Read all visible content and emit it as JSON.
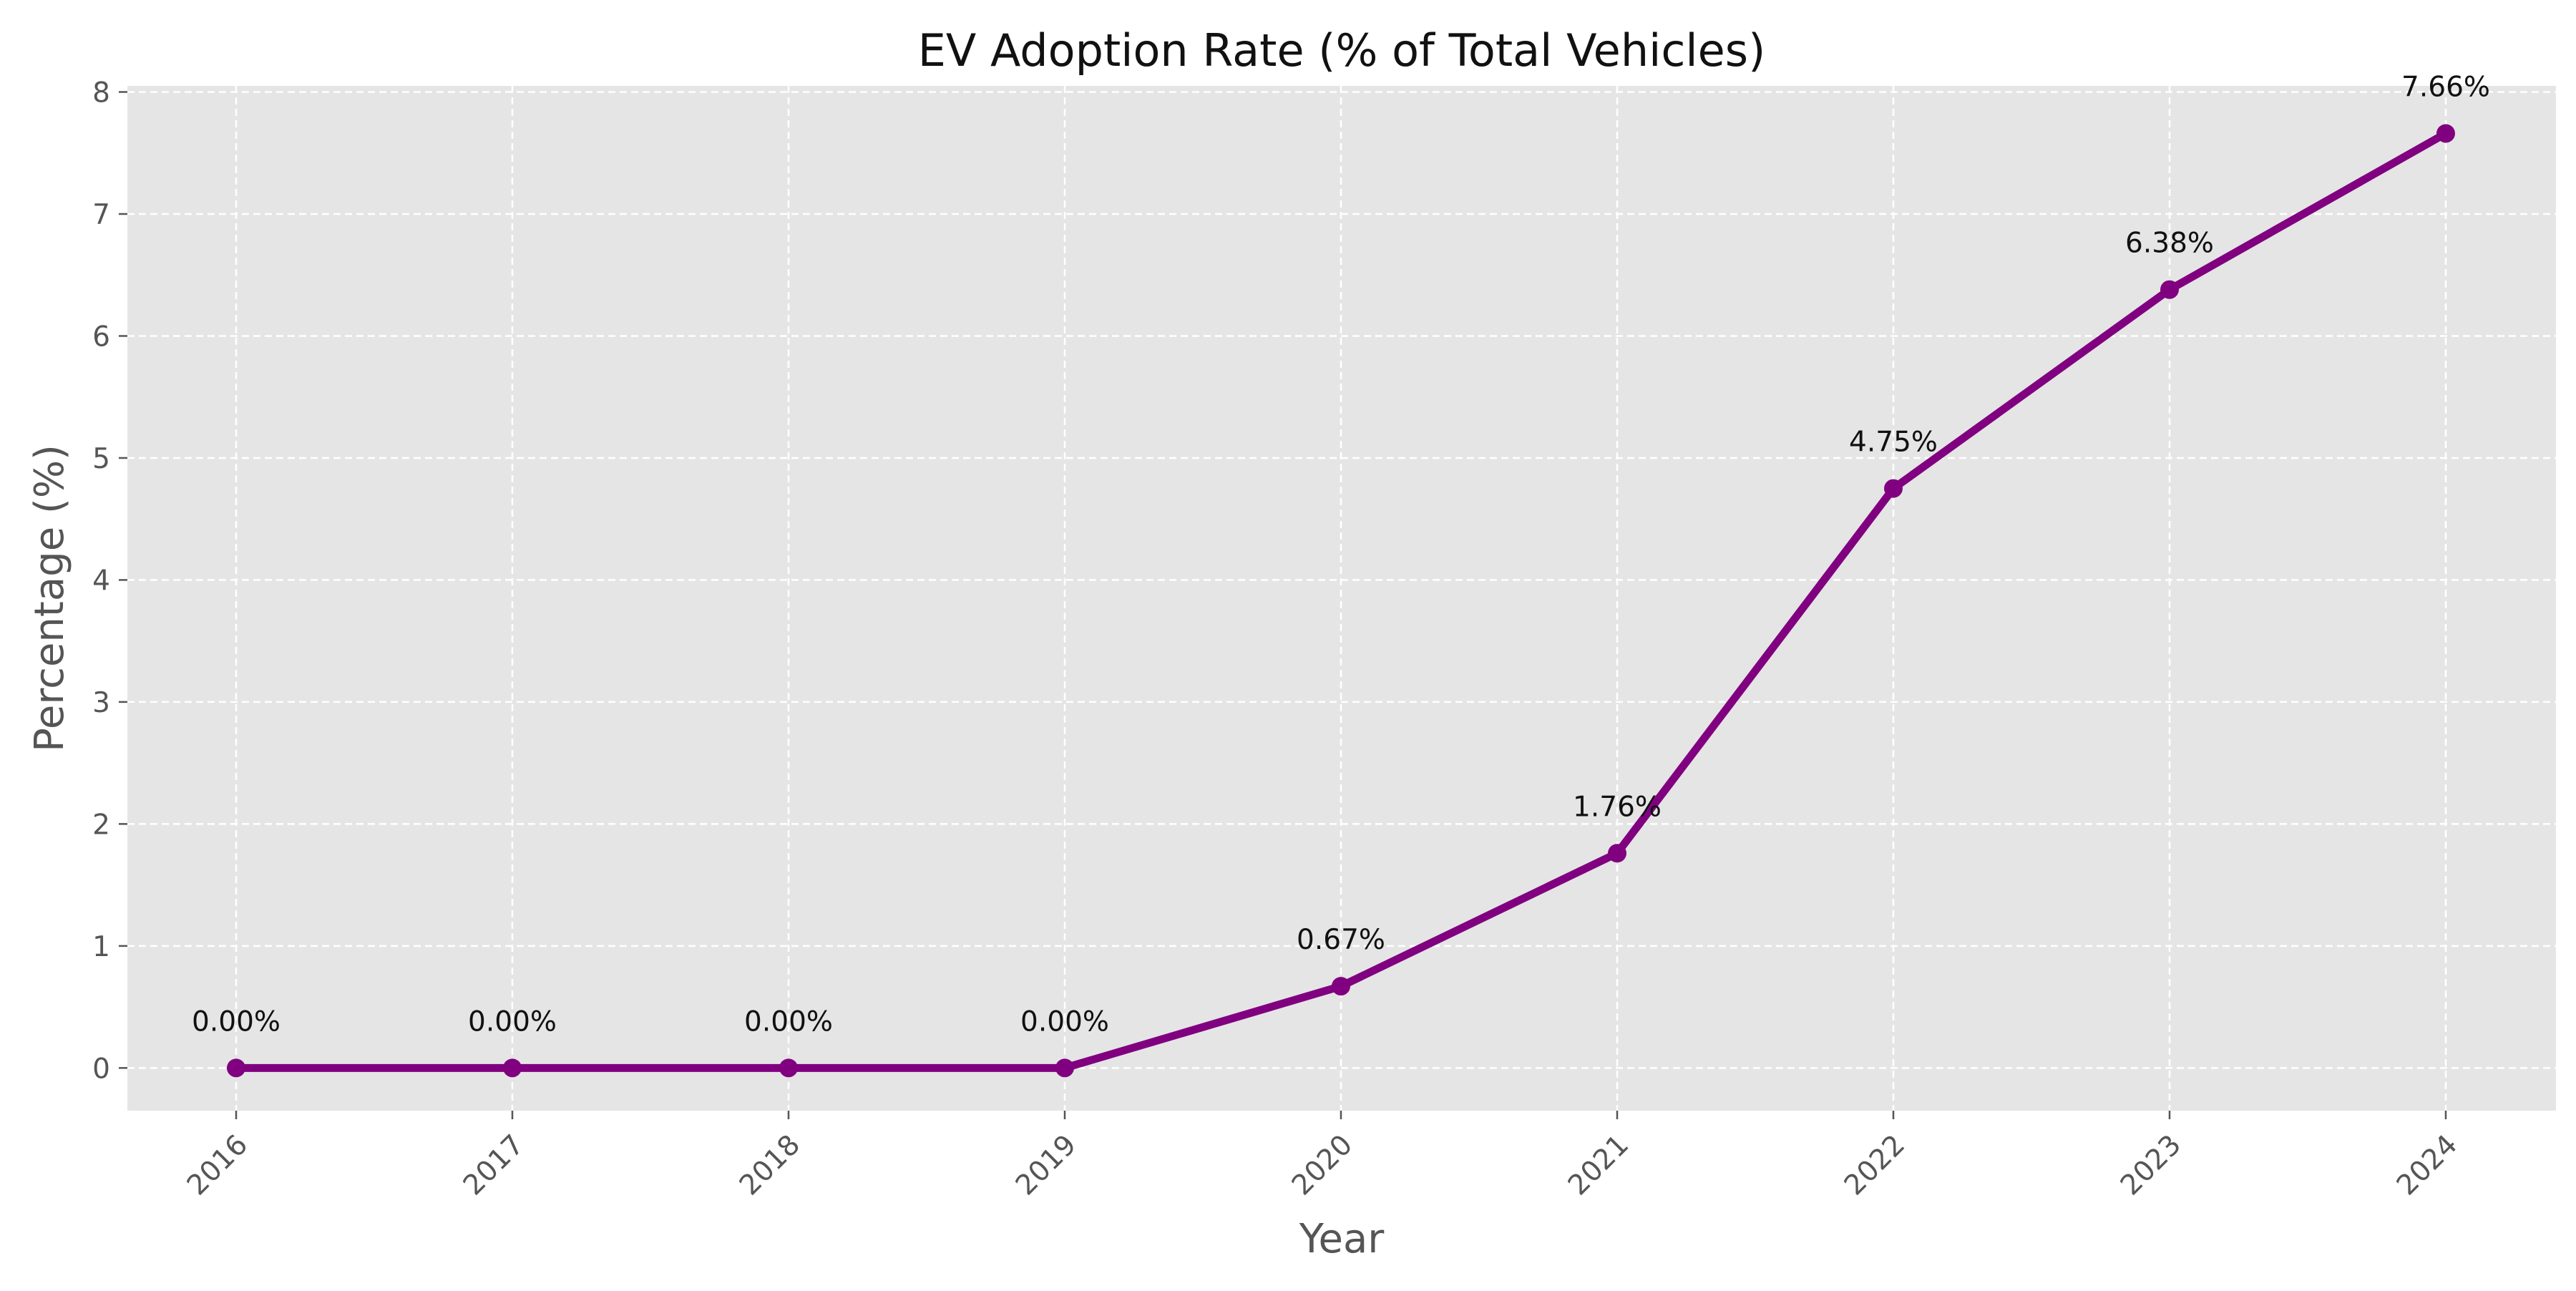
{
  "chart_data": {
    "type": "line",
    "title": "EV Adoption Rate (% of Total Vehicles)",
    "xlabel": "Year",
    "ylabel": "Percentage (%)",
    "categories": [
      "2016",
      "2017",
      "2018",
      "2019",
      "2020",
      "2021",
      "2022",
      "2023",
      "2024"
    ],
    "series": [
      {
        "values": [
          0.0,
          0.0,
          0.0,
          0.0,
          0.67,
          1.76,
          4.75,
          6.38,
          7.66
        ],
        "data_labels": [
          "0.00%",
          "0.00%",
          "0.00%",
          "0.00%",
          "0.67%",
          "1.76%",
          "4.75%",
          "6.38%",
          "7.66%"
        ],
        "color": "#800080",
        "marker": "circle"
      }
    ],
    "ylim": [
      -0.35,
      8.05
    ],
    "yticks": [
      0,
      1,
      2,
      3,
      4,
      5,
      6,
      7,
      8
    ],
    "ytick_labels": [
      "0",
      "1",
      "2",
      "3",
      "4",
      "5",
      "6",
      "7",
      "8"
    ],
    "grid": true,
    "grid_style": "dashed",
    "plot_background": "#e5e5e5",
    "grid_color": "#ffffff",
    "xtick_rotation_deg": 45
  }
}
